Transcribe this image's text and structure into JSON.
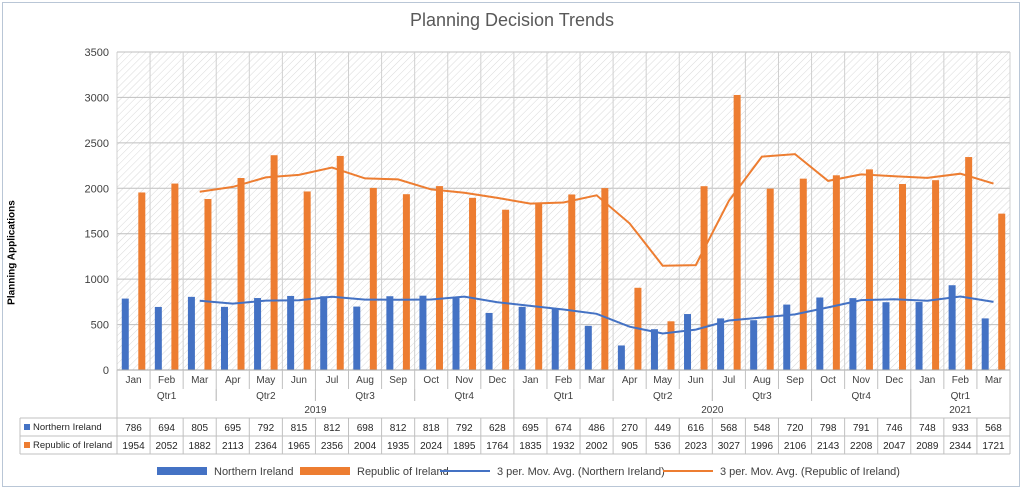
{
  "chart_data": {
    "type": "bar",
    "title": "Planning Decision Trends",
    "ylabel": "Planning Applications",
    "xlabel": "",
    "ylim": [
      0,
      3500
    ],
    "yticks": [
      0,
      500,
      1000,
      1500,
      2000,
      2500,
      3000,
      3500
    ],
    "grid": true,
    "legend_position": "bottom",
    "categories": [
      "Jan",
      "Feb",
      "Mar",
      "Apr",
      "May",
      "Jun",
      "Jul",
      "Aug",
      "Sep",
      "Oct",
      "Nov",
      "Dec",
      "Jan",
      "Feb",
      "Mar",
      "Apr",
      "May",
      "Jun",
      "Jul",
      "Aug",
      "Sep",
      "Oct",
      "Nov",
      "Dec",
      "Jan",
      "Feb",
      "Mar"
    ],
    "quarter_groups": [
      {
        "label": "Qtr1",
        "start": 0,
        "end": 2
      },
      {
        "label": "Qtr2",
        "start": 3,
        "end": 5
      },
      {
        "label": "Qtr3",
        "start": 6,
        "end": 8
      },
      {
        "label": "Qtr4",
        "start": 9,
        "end": 11
      },
      {
        "label": "Qtr1",
        "start": 12,
        "end": 14
      },
      {
        "label": "Qtr2",
        "start": 15,
        "end": 17
      },
      {
        "label": "Qtr3",
        "start": 18,
        "end": 20
      },
      {
        "label": "Qtr4",
        "start": 21,
        "end": 23
      },
      {
        "label": "Qtr1",
        "start": 24,
        "end": 26
      }
    ],
    "year_groups": [
      {
        "label": "2019",
        "start": 0,
        "end": 11
      },
      {
        "label": "2020",
        "start": 12,
        "end": 23
      },
      {
        "label": "2021",
        "start": 24,
        "end": 26
      }
    ],
    "series": [
      {
        "name": "Northern Ireland",
        "color": "#4472C4",
        "values": [
          786,
          694,
          805,
          695,
          792,
          815,
          812,
          698,
          812,
          818,
          792,
          628,
          695,
          674,
          486,
          270,
          449,
          616,
          568,
          548,
          720,
          798,
          791,
          746,
          748,
          933,
          568
        ]
      },
      {
        "name": "Republic of Ireland",
        "color": "#ED7D31",
        "values": [
          1954,
          2052,
          1882,
          2113,
          2364,
          1965,
          2356,
          2004,
          1935,
          2024,
          1895,
          1764,
          1835,
          1932,
          2002,
          905,
          536,
          2023,
          3027,
          1996,
          2106,
          2143,
          2208,
          2047,
          2089,
          2344,
          1721
        ]
      }
    ],
    "trendlines": [
      {
        "name": "3 per. Mov. Avg. (Northern Ireland)",
        "series": 0,
        "period": 3,
        "color": "#4472C4"
      },
      {
        "name": "3 per. Mov. Avg. (Republic of Ireland)",
        "series": 1,
        "period": 3,
        "color": "#ED7D31"
      }
    ]
  }
}
